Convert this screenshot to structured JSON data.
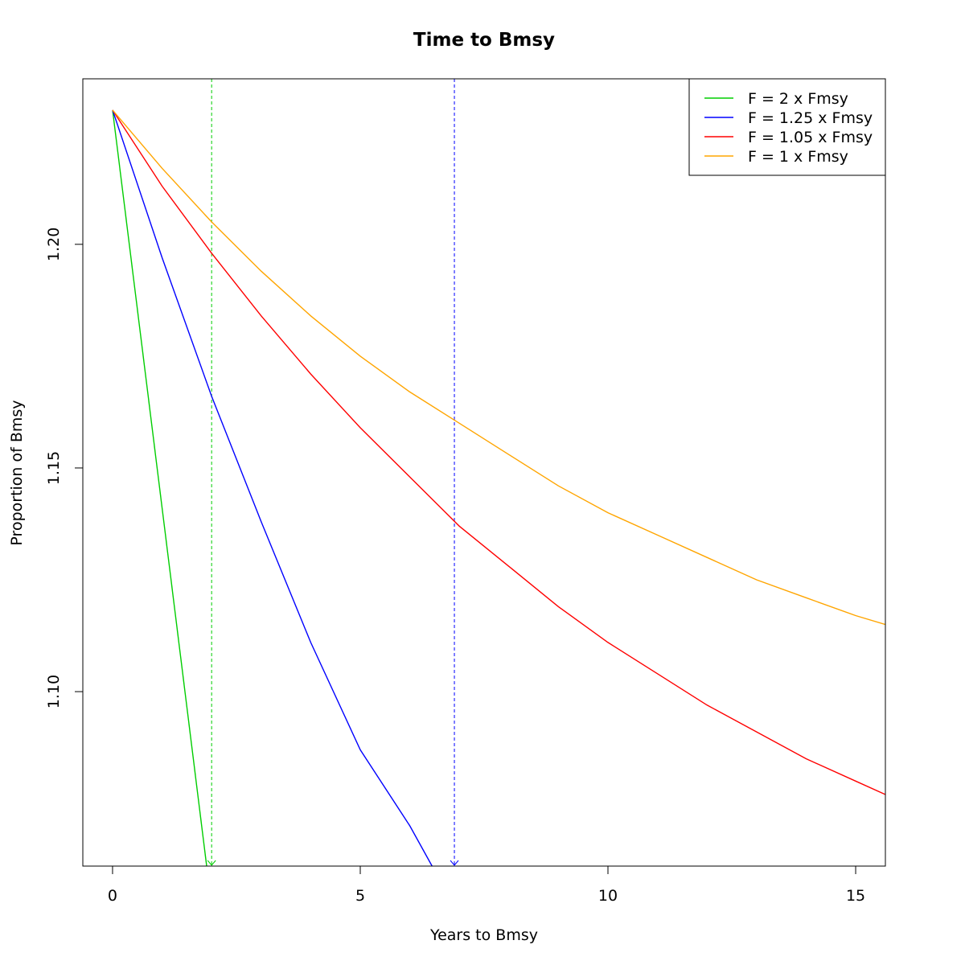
{
  "chart_data": {
    "type": "line",
    "title": "Time to Bmsy",
    "xlabel": "Years to Bmsy",
    "ylabel": "Proportion of Bmsy",
    "xlim": [
      -0.6,
      15.6
    ],
    "ylim": [
      1.061,
      1.237
    ],
    "x_ticks": [
      0,
      5,
      10,
      15
    ],
    "y_ticks": [
      1.1,
      1.15,
      1.2
    ],
    "x_tick_labels": [
      "0",
      "5",
      "10",
      "15"
    ],
    "y_tick_labels": [
      "1.10",
      "1.15",
      "1.20"
    ],
    "legend_position": "top-right",
    "grid": false,
    "series": [
      {
        "name": "F = 2 x Fmsy",
        "color": "#00CD00",
        "x": [
          0,
          1.9
        ],
        "y": [
          1.23,
          1.061
        ]
      },
      {
        "name": "F = 1.25 x Fmsy",
        "color": "#0000FF",
        "x": [
          0,
          1,
          2,
          3,
          4,
          5,
          6,
          6.45
        ],
        "y": [
          1.23,
          1.197,
          1.166,
          1.138,
          1.111,
          1.087,
          1.07,
          1.061
        ]
      },
      {
        "name": "F = 1.05 x Fmsy",
        "color": "#FF0000",
        "x": [
          0,
          1,
          2,
          3,
          4,
          5,
          6,
          7,
          8,
          9,
          10,
          11,
          12,
          13,
          14,
          15,
          15.6
        ],
        "y": [
          1.23,
          1.213,
          1.198,
          1.184,
          1.171,
          1.159,
          1.148,
          1.137,
          1.128,
          1.119,
          1.111,
          1.104,
          1.097,
          1.091,
          1.085,
          1.08,
          1.077
        ]
      },
      {
        "name": "F = 1 x Fmsy",
        "color": "#FFA500",
        "x": [
          0,
          1,
          2,
          3,
          4,
          5,
          6,
          7,
          8,
          9,
          10,
          11,
          12,
          13,
          14,
          15,
          15.6
        ],
        "y": [
          1.23,
          1.217,
          1.205,
          1.194,
          1.184,
          1.175,
          1.167,
          1.16,
          1.153,
          1.146,
          1.14,
          1.135,
          1.13,
          1.125,
          1.121,
          1.117,
          1.115
        ]
      }
    ],
    "reference_lines": [
      {
        "x": 2.0,
        "color": "#00CD00",
        "style": "dashed"
      },
      {
        "x": 6.9,
        "color": "#0000FF",
        "style": "dashed"
      }
    ]
  }
}
